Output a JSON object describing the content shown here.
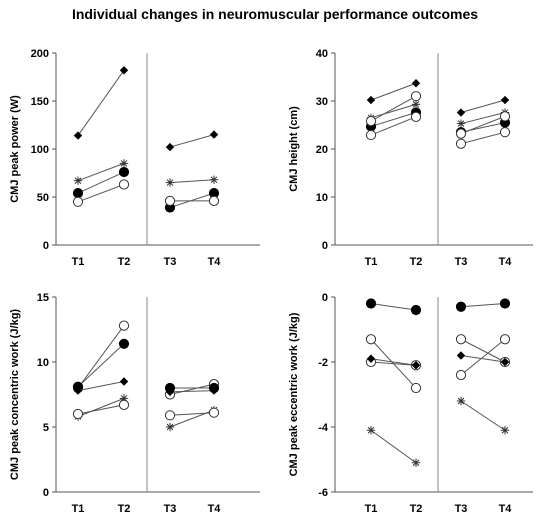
{
  "title": "Individual changes in neuromuscular performance outcomes",
  "chart_data": [
    {
      "type": "line",
      "ylabel": "CMJ peak power (W)",
      "xlabel": "",
      "ylim": [
        0,
        200
      ],
      "yticks": [
        0,
        50,
        100,
        150,
        200
      ],
      "categories": [
        "T1",
        "T2",
        "T3",
        "T4"
      ],
      "grid": false,
      "series": [
        {
          "marker": "diamond",
          "values": [
            114,
            182,
            102,
            115
          ]
        },
        {
          "marker": "asterisk",
          "values": [
            67,
            85,
            65,
            68
          ]
        },
        {
          "marker": "filled-circle",
          "values": [
            54,
            76,
            39,
            54
          ]
        },
        {
          "marker": "open-circle",
          "values": [
            45,
            63,
            46,
            46
          ]
        }
      ]
    },
    {
      "type": "line",
      "ylabel": "CMJ height (cm)",
      "xlabel": "",
      "ylim": [
        0,
        40
      ],
      "yticks": [
        0,
        10,
        20,
        30,
        40
      ],
      "categories": [
        "T1",
        "T2",
        "T3",
        "T4"
      ],
      "grid": false,
      "series": [
        {
          "marker": "diamond",
          "values": [
            30.2,
            33.7,
            27.6,
            30.2
          ]
        },
        {
          "marker": "asterisk",
          "values": [
            26.5,
            29.3,
            25.3,
            27.6
          ]
        },
        {
          "marker": "filled-circle",
          "values": [
            24.7,
            27.6,
            23.5,
            25.5
          ]
        },
        {
          "marker": "open-circle",
          "values": [
            25.8,
            31.0,
            23.2,
            26.8
          ]
        },
        {
          "marker": "open-circle",
          "values": [
            22.9,
            26.7,
            21.1,
            23.5
          ]
        }
      ]
    },
    {
      "type": "line",
      "ylabel": "CMJ peak concentric work (J/kg)",
      "xlabel": "",
      "ylim": [
        0,
        15
      ],
      "yticks": [
        0,
        5,
        10,
        15
      ],
      "categories": [
        "T1",
        "T2",
        "T3",
        "T4"
      ],
      "grid": false,
      "series": [
        {
          "marker": "open-circle",
          "values": [
            8.0,
            12.8,
            7.5,
            8.3
          ]
        },
        {
          "marker": "filled-circle",
          "values": [
            8.1,
            11.4,
            8.0,
            8.0
          ]
        },
        {
          "marker": "diamond",
          "values": [
            7.8,
            8.5,
            7.7,
            7.8
          ]
        },
        {
          "marker": "asterisk",
          "values": [
            5.8,
            7.2,
            5.0,
            6.3
          ]
        },
        {
          "marker": "open-circle",
          "values": [
            6.0,
            6.7,
            5.9,
            6.1
          ]
        }
      ]
    },
    {
      "type": "line",
      "ylabel": "CMJ peak eccentric work (J/kg)",
      "xlabel": "",
      "ylim": [
        -6,
        0
      ],
      "yticks": [
        0,
        -2,
        -4,
        -6
      ],
      "categories": [
        "T1",
        "T2",
        "T3",
        "T4"
      ],
      "grid": false,
      "series": [
        {
          "marker": "filled-circle",
          "values": [
            -0.2,
            -0.4,
            -0.3,
            -0.2
          ]
        },
        {
          "marker": "open-circle",
          "values": [
            -1.3,
            -2.8,
            -1.3,
            -2.0
          ]
        },
        {
          "marker": "open-circle",
          "values": [
            -2.0,
            -2.1,
            -2.4,
            -1.3
          ]
        },
        {
          "marker": "diamond",
          "values": [
            -1.9,
            -2.1,
            -1.8,
            -2.0
          ]
        },
        {
          "marker": "asterisk",
          "values": [
            -4.1,
            -5.1,
            -3.2,
            -4.1
          ]
        }
      ]
    }
  ]
}
